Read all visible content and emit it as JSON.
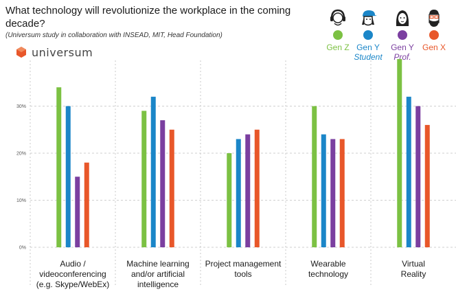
{
  "header": {
    "title": "What technology will revolutionize the workplace in the coming decade?",
    "subtitle": "(Universum study in collaboration with INSEAD, MIT, Head Foundation)",
    "brand": "universum"
  },
  "legend": [
    {
      "label": "Gen Z",
      "sub": "",
      "color": "#7cc143",
      "sub_color": "",
      "icon": "headphones-person-icon"
    },
    {
      "label": "Gen Y",
      "sub": "Student",
      "color": "#1b86c8",
      "sub_color": "#1b86c8",
      "icon": "cap-person-icon"
    },
    {
      "label": "Gen Y",
      "sub": "Prof.",
      "color": "#7b3fa0",
      "sub_color": "#7b3fa0",
      "icon": "woman-icon"
    },
    {
      "label": "Gen X",
      "sub": "",
      "color": "#e8572a",
      "sub_color": "",
      "icon": "bearded-man-icon"
    }
  ],
  "chart_data": {
    "type": "bar",
    "title": "What technology will revolutionize the workplace in the coming decade?",
    "subtitle": "(Universum study in collaboration with INSEAD, MIT, Head Foundation)",
    "categories": [
      "Audio / videoconferencing (e.g. Skype/WebEx)",
      "Machine learning and/or artificial intelligence",
      "Project management tools",
      "Wearable technology",
      "Virtual Reality"
    ],
    "category_lines": [
      [
        "Audio /",
        "videoconferencing",
        "(e.g. Skype/WebEx)"
      ],
      [
        "Machine learning",
        "and/or artificial",
        "intelligence"
      ],
      [
        "Project management",
        "tools"
      ],
      [
        "Wearable",
        "technology"
      ],
      [
        "Virtual",
        "Reality"
      ]
    ],
    "series": [
      {
        "name": "Gen Z",
        "color": "#7cc143",
        "values": [
          34,
          29,
          20,
          30,
          40
        ]
      },
      {
        "name": "Gen Y Student",
        "color": "#1b86c8",
        "values": [
          30,
          32,
          23,
          24,
          32
        ]
      },
      {
        "name": "Gen Y Prof.",
        "color": "#7b3fa0",
        "values": [
          15,
          27,
          24,
          23,
          30
        ]
      },
      {
        "name": "Gen X",
        "color": "#e8572a",
        "values": [
          18,
          25,
          25,
          23,
          26
        ]
      }
    ],
    "ylim": [
      0,
      40
    ],
    "yticks": [
      0,
      10,
      20,
      30
    ],
    "ytick_labels": [
      "0%",
      "10%",
      "20%",
      "30%"
    ],
    "grid": true,
    "legend_position": "top-right"
  }
}
